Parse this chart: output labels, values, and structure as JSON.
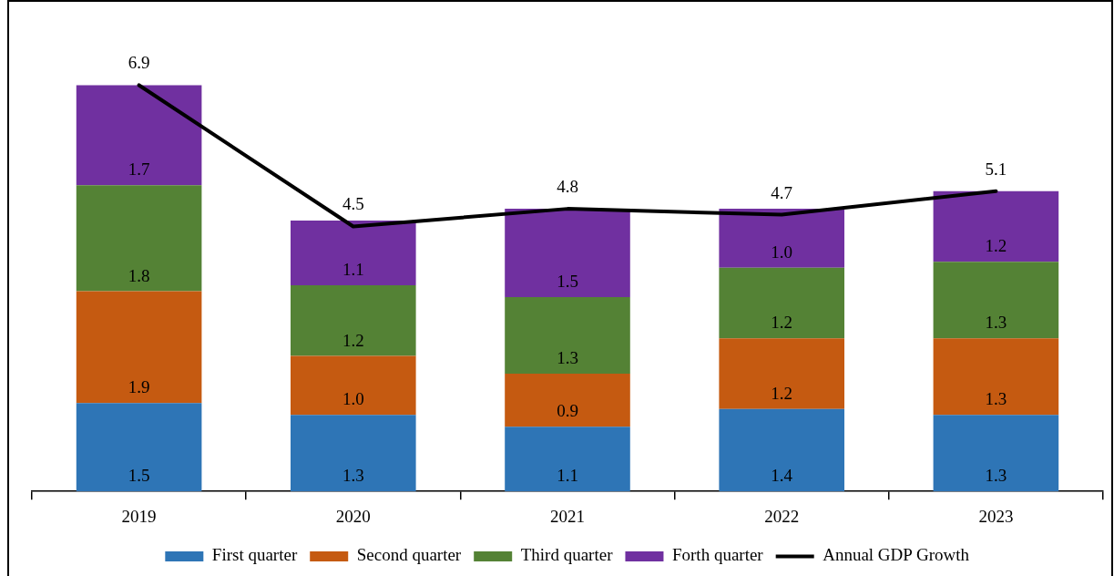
{
  "chart_data": {
    "type": "bar",
    "stacked": true,
    "categories": [
      "2019",
      "2020",
      "2021",
      "2022",
      "2023"
    ],
    "series": [
      {
        "name": "First quarter",
        "color": "#2e75b6",
        "values": [
          1.5,
          1.3,
          1.1,
          1.4,
          1.3
        ],
        "value_labels": [
          "1.5",
          "1.3",
          "1.1",
          "1.4",
          "1.3"
        ]
      },
      {
        "name": "Second quarter",
        "color": "#c55a11",
        "values": [
          1.9,
          1.0,
          0.9,
          1.2,
          1.3
        ],
        "value_labels": [
          "1.9",
          "1.0",
          "0.9",
          "1.2",
          "1.3"
        ]
      },
      {
        "name": "Third quarter",
        "color": "#548235",
        "values": [
          1.8,
          1.2,
          1.3,
          1.2,
          1.3
        ],
        "value_labels": [
          "1.8",
          "1.2",
          "1.3",
          "1.2",
          "1.3"
        ]
      },
      {
        "name": "Forth quarter",
        "color": "#7030a0",
        "values": [
          1.7,
          1.1,
          1.5,
          1.0,
          1.2
        ],
        "value_labels": [
          "1.7",
          "1.1",
          "1.5",
          "1.0",
          "1.2"
        ]
      },
      {
        "name": "Annual GDP Growth",
        "type": "line",
        "color": "#000000",
        "values": [
          6.9,
          4.5,
          4.8,
          4.7,
          5.1
        ],
        "value_labels": [
          "6.9",
          "4.5",
          "4.8",
          "4.7",
          "5.1"
        ]
      }
    ],
    "legend": "bottom",
    "marker": "none",
    "line_style": "solid"
  }
}
